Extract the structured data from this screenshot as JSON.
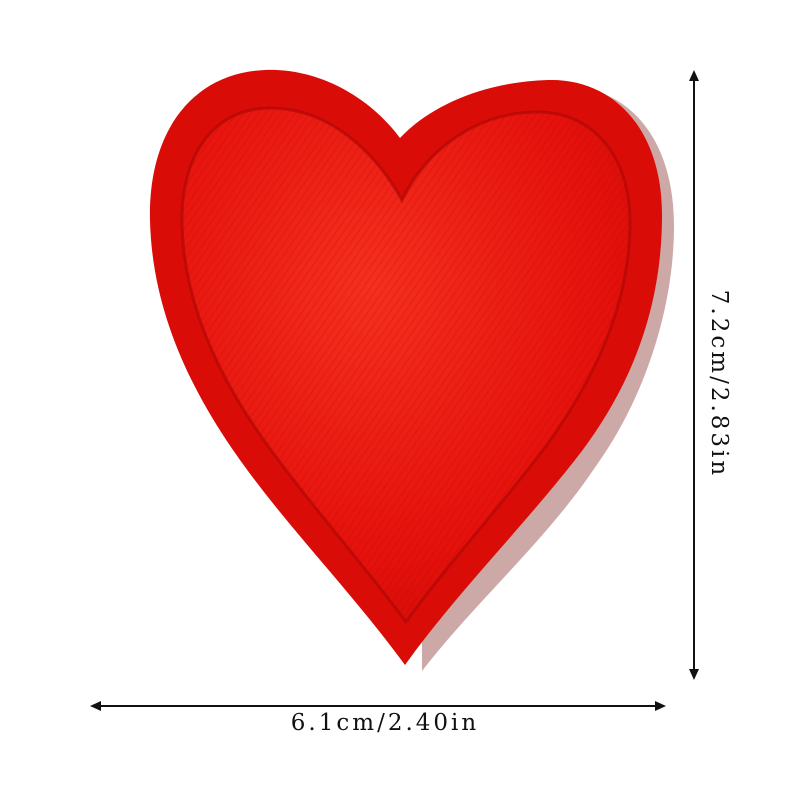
{
  "product": {
    "name": "red-heart-patch",
    "colors": {
      "fill": "#e5110c",
      "fill_light": "#f2271f",
      "border": "#d90c08",
      "shadow": "#b10805",
      "line": "#111111"
    }
  },
  "dimensions": {
    "width_label": "6.1cm/2.40in",
    "height_label": "7.2cm/2.83in"
  }
}
